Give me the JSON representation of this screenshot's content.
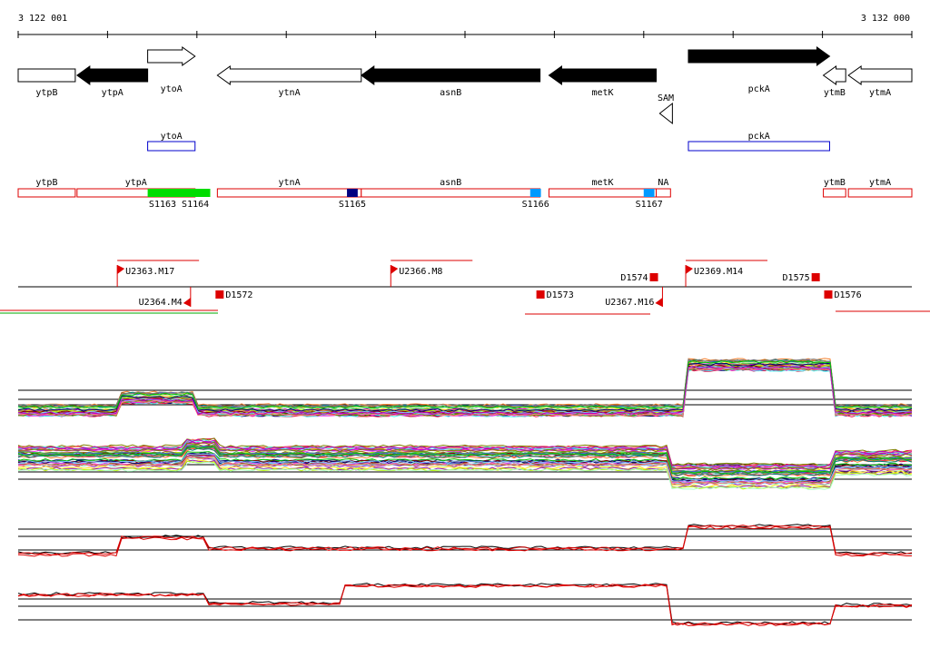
{
  "ruler": {
    "start_label": "3 122 001",
    "end_label": "3 132 000",
    "start": 3122001,
    "end": 3132000
  },
  "genes": [
    {
      "name": "ytpB",
      "start": 3122001,
      "end": 3122640,
      "strand": "-",
      "filled": false,
      "row": "lower",
      "label_row": "below"
    },
    {
      "name": "ytpA",
      "start": 3122660,
      "end": 3123450,
      "strand": "-",
      "filled": true,
      "row": "lower",
      "label_row": "below"
    },
    {
      "name": "ytoA",
      "start": 3123450,
      "end": 3123980,
      "strand": "+",
      "filled": false,
      "row": "upper",
      "label_row": "below"
    },
    {
      "name": "ytnA",
      "start": 3124230,
      "end": 3125840,
      "strand": "-",
      "filled": false,
      "row": "lower",
      "label_row": "below"
    },
    {
      "name": "asnB",
      "start": 3125840,
      "end": 3127840,
      "strand": "-",
      "filled": true,
      "row": "lower",
      "label_row": "below"
    },
    {
      "name": "metK",
      "start": 3127940,
      "end": 3129140,
      "strand": "-",
      "filled": true,
      "row": "lower",
      "label_row": "below"
    },
    {
      "name": "pckA",
      "start": 3129500,
      "end": 3131080,
      "strand": "+",
      "filled": true,
      "row": "upper",
      "label_row": "below"
    },
    {
      "name": "ytmB",
      "start": 3131010,
      "end": 3131260,
      "strand": "-",
      "filled": false,
      "row": "lower",
      "label_row": "below"
    },
    {
      "name": "ytmA",
      "start": 3131290,
      "end": 3132000,
      "strand": "-",
      "filled": false,
      "row": "lower",
      "label_row": "below"
    }
  ],
  "sam": {
    "label": "SAM",
    "position": 3129250
  },
  "operon_genes": [
    {
      "name": "ytoA",
      "start": 3123450,
      "end": 3123980
    },
    {
      "name": "pckA",
      "start": 3129500,
      "end": 3131080
    }
  ],
  "transcripts": [
    {
      "name": "ytpB",
      "start": 3122001,
      "end": 3122640
    },
    {
      "name": "ytpA",
      "start": 3122660,
      "end": 3123980
    },
    {
      "name": "ytnA",
      "start": 3124230,
      "end": 3125840
    },
    {
      "name": "asnB",
      "start": 3125840,
      "end": 3127840
    },
    {
      "name": "metK",
      "start": 3127940,
      "end": 3129140
    },
    {
      "name": "NA",
      "start": 3129140,
      "end": 3129300
    },
    {
      "name": "ytmB",
      "start": 3131010,
      "end": 3131260
    },
    {
      "name": "ytmA",
      "start": 3131290,
      "end": 3132000
    }
  ],
  "segment_marks": [
    {
      "name": "S1163 S1164",
      "start": 3123450,
      "end": 3124150,
      "color": "#00dd00"
    },
    {
      "name": "S1165",
      "start": 3125680,
      "end": 3125800,
      "color": "#000080"
    },
    {
      "name": "S1166",
      "start": 3127730,
      "end": 3127850,
      "color": "#0099ff"
    },
    {
      "name": "S1167",
      "start": 3129000,
      "end": 3129120,
      "color": "#0099ff"
    }
  ],
  "upstream_features": [
    {
      "name": "U2363.M17",
      "position": 3123110,
      "strand": "+"
    },
    {
      "name": "U2366.M8",
      "position": 3126170,
      "strand": "+"
    },
    {
      "name": "U2369.M14",
      "position": 3129470,
      "strand": "+"
    },
    {
      "name": "U2364.M4",
      "position": 3123930,
      "strand": "-"
    },
    {
      "name": "U2367.M16",
      "position": 3129210,
      "strand": "-"
    }
  ],
  "downstream_features": [
    {
      "name": "D1572",
      "position": 3124250,
      "strand": "-"
    },
    {
      "name": "D1573",
      "position": 3127840,
      "strand": "-"
    },
    {
      "name": "D1574",
      "position": 3129150,
      "strand": "+"
    },
    {
      "name": "D1575",
      "position": 3130960,
      "strand": "+"
    },
    {
      "name": "D1576",
      "position": 3131060,
      "strand": "-"
    }
  ]
}
